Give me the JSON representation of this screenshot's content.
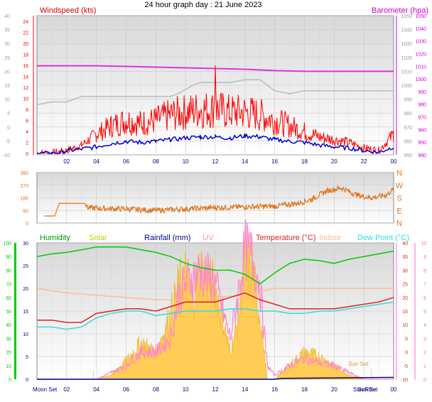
{
  "title": "24 hour graph day : 21 June 2023",
  "colors": {
    "windspeed": "#ff0000",
    "gust_label": "#cc0000",
    "avg_wind": "#0000cc",
    "barometer": "#dd33dd",
    "baro_label": "#cc00cc",
    "humidity": "#00cc00",
    "humidity_label": "#009900",
    "solar": "#ffcc55",
    "solar_label": "#cccc00",
    "rainfall": "#000088",
    "uv": "#ff88cc",
    "temperature": "#dd2222",
    "indoor": "#ffbb99",
    "dewpoint": "#33dddd",
    "direction": "#dd7722",
    "axis_pink": "#ff66cc",
    "axis_green": "#00cc00",
    "time_blue": "#000088"
  },
  "chart_data": [
    {
      "type": "line",
      "name": "wind-and-pressure",
      "left_axis_label": "Windspeed (kts)",
      "right_axis_label": "Barometer (hpa)",
      "left_axis_ticks": [
        "40",
        "35",
        "30",
        "25",
        "20",
        "15",
        "10",
        "5",
        "0",
        "-5",
        "-10"
      ],
      "left_axis_range": [
        -10,
        40
      ],
      "left_inner_ticks": [
        "24",
        "22",
        "20",
        "18",
        "16",
        "14",
        "12",
        "10",
        "8",
        "6",
        "4",
        "2",
        "0"
      ],
      "left_inner_range": [
        0,
        24
      ],
      "right_axis_ticks": [
        "1050",
        "1040",
        "1030",
        "1020",
        "1010",
        "1000",
        "990",
        "980",
        "970",
        "960",
        "950"
      ],
      "right_axis_range": [
        950,
        1050
      ],
      "right_inner_ticks": [
        "1050",
        "1040",
        "1030",
        "1020",
        "1010",
        "1000",
        "990",
        "980",
        "970",
        "960",
        "950",
        "980"
      ],
      "x_ticks": [
        "02",
        "04",
        "06",
        "08",
        "10",
        "12",
        "14",
        "16",
        "18",
        "20",
        "22",
        "00"
      ],
      "x_range_hours": [
        0,
        24
      ],
      "series": [
        {
          "name": "Barometer (hpa)",
          "x": [
            0,
            2,
            4,
            6,
            8,
            10,
            12,
            14,
            16,
            18,
            20,
            22,
            24
          ],
          "values": [
            1014,
            1014,
            1014,
            1013.5,
            1013,
            1012.5,
            1012,
            1011.5,
            1010.5,
            1010,
            1010,
            1010,
            1010
          ]
        },
        {
          "x": [
            0,
            1,
            2,
            3,
            4,
            5,
            6,
            7,
            8,
            9,
            9.5,
            10.5,
            11,
            12,
            13,
            14,
            15,
            15.5,
            16,
            17,
            18,
            19,
            20,
            21,
            22,
            23,
            24
          ],
          "values": [
            8,
            9,
            9,
            11,
            11,
            11,
            11,
            11,
            11,
            11,
            12,
            15,
            16,
            16,
            16,
            17,
            17,
            15,
            13,
            12,
            13,
            13,
            13,
            13,
            13,
            13,
            13
          ]
        },
        {
          "x": [
            0,
            1,
            1.5,
            2,
            3,
            4,
            5,
            6,
            7,
            8,
            9,
            10,
            11,
            12,
            13,
            14,
            15,
            16,
            17,
            18,
            19,
            20,
            21,
            22,
            23,
            24
          ],
          "values": [
            0,
            0,
            0,
            0.5,
            0.8,
            1.2,
            1.8,
            2.2,
            2.0,
            2.2,
            2.5,
            2.8,
            3.0,
            3.0,
            2.8,
            3.2,
            3.0,
            2.5,
            2.2,
            2.0,
            1.5,
            1.2,
            1.0,
            0.5,
            0.2,
            1.2
          ]
        },
        {
          "x": [
            0,
            1,
            2,
            3,
            4,
            5,
            6,
            7,
            8,
            9,
            10,
            11,
            11.9,
            12,
            12.1,
            13,
            14,
            15,
            16,
            17,
            18,
            19,
            20,
            21,
            22,
            23,
            24
          ],
          "values": [
            0,
            0,
            0.5,
            1.5,
            3.5,
            5,
            6,
            5.5,
            6,
            7,
            7.5,
            8,
            8,
            16,
            8,
            7.5,
            7.5,
            7,
            6,
            5,
            4,
            3,
            2.5,
            2,
            1,
            0.5,
            3.5
          ]
        }
      ]
    },
    {
      "type": "line",
      "name": "wind-direction",
      "left_axis_ticks": [
        "360",
        "270",
        "180",
        "90",
        "0"
      ],
      "left_axis_range": [
        0,
        360
      ],
      "right_axis_ticks": [
        "N",
        "W",
        "S",
        "E",
        "N"
      ],
      "x_range_hours": [
        0,
        24
      ],
      "series": [
        {
          "x": [
            0.5,
            1.2,
            1.5,
            3.2,
            3.4,
            4,
            6,
            8,
            10,
            12,
            14,
            16,
            17.5,
            18.5,
            19.5,
            20.5,
            21.5,
            22.5,
            23.5,
            24
          ],
          "values": [
            50,
            50,
            140,
            140,
            110,
            105,
            100,
            90,
            100,
            110,
            115,
            120,
            140,
            170,
            230,
            250,
            200,
            180,
            200,
            240
          ]
        }
      ]
    },
    {
      "type": "line",
      "name": "temperature-humidity-solar",
      "legend": [
        "Humidity",
        "Solar",
        "Rainfall (mm)",
        "UV",
        "Temperature (°C)",
        "Indoor",
        "Dew Point (°C)"
      ],
      "far_left_ticks": [
        "100",
        "90",
        "80",
        "70",
        "60",
        "50",
        "40",
        "30",
        "20",
        "10",
        "0"
      ],
      "far_left_range": [
        0,
        100
      ],
      "left_ticks": [
        "30",
        "25",
        "20",
        "15",
        "10",
        "5",
        "0"
      ],
      "left_range": [
        0,
        30
      ],
      "right_ticks": [
        "40",
        "35",
        "30",
        "25",
        "20",
        "15",
        "10",
        "5",
        "0",
        "-5",
        "-10"
      ],
      "right_range": [
        -10,
        40
      ],
      "far_right_ticks": [
        "10",
        "9",
        "8",
        "7",
        "6",
        "5",
        "4",
        "3",
        "2",
        "1",
        "0"
      ],
      "far_right_range": [
        0,
        10
      ],
      "x_ticks": [
        "02",
        "04",
        "06",
        "08",
        "10",
        "12",
        "14",
        "16",
        "18",
        "20",
        "22",
        "00"
      ],
      "x_range_hours": [
        0,
        24
      ],
      "annotations": [
        "Moon Set",
        "Sun Rise",
        "Sun Set",
        "Sun Set"
      ],
      "series": [
        {
          "name": "Humidity",
          "x": [
            0,
            1,
            2,
            3,
            4,
            5,
            6,
            7,
            8,
            9,
            10,
            11,
            12,
            13,
            14,
            15,
            16,
            17,
            18,
            19,
            20,
            21,
            22,
            23,
            24
          ],
          "values": [
            90,
            92,
            93,
            95,
            97,
            97,
            97,
            95,
            93,
            90,
            85,
            82,
            80,
            80,
            77,
            70,
            78,
            85,
            88,
            87,
            85,
            88,
            90,
            92,
            94
          ]
        },
        {
          "name": "Indoor",
          "x": [
            0,
            2,
            4,
            6,
            8,
            10,
            12,
            14,
            16,
            18,
            20,
            22,
            24
          ],
          "values": [
            20,
            19,
            18.5,
            18,
            17.5,
            17.5,
            18,
            18.5,
            20,
            20,
            20,
            20,
            20
          ]
        },
        {
          "name": "Temperature (°C)",
          "x": [
            0,
            1,
            2,
            3,
            4,
            5,
            6,
            7,
            8,
            9,
            10,
            11,
            12,
            13,
            14,
            15,
            16,
            17,
            18,
            19,
            20,
            21,
            22,
            23,
            24
          ],
          "values": [
            13,
            13,
            12.5,
            12.5,
            14.5,
            15,
            15.5,
            15.5,
            15,
            16,
            17,
            17,
            17,
            18,
            19,
            17.5,
            16.5,
            15.5,
            15.5,
            15.5,
            15.5,
            16,
            16.5,
            17,
            18
          ]
        },
        {
          "name": "Dew Point (°C)",
          "x": [
            0,
            1,
            2,
            3,
            4,
            5,
            6,
            7,
            8,
            9,
            10,
            11,
            12,
            13,
            14,
            15,
            16,
            17,
            18,
            19,
            20,
            21,
            22,
            23,
            24
          ],
          "values": [
            11.5,
            11.5,
            11,
            11.5,
            13.5,
            14.5,
            15,
            15,
            14,
            14.5,
            15,
            15,
            15,
            15.5,
            15.5,
            15,
            15,
            14.5,
            14.5,
            15,
            15,
            15.5,
            16,
            16.5,
            17
          ]
        },
        {
          "name": "Solar",
          "x": [
            0,
            4,
            5,
            6,
            7,
            8,
            9,
            9.5,
            10,
            10.5,
            11,
            12,
            13,
            13.5,
            14,
            14.5,
            15,
            15.5,
            16,
            17,
            18,
            19,
            20,
            21,
            22,
            24
          ],
          "values": [
            0,
            0,
            1,
            4,
            8,
            6,
            14,
            20,
            23,
            18,
            24,
            20,
            6,
            12,
            26,
            23,
            14,
            0,
            0,
            3,
            6,
            5,
            3,
            1,
            0,
            0
          ]
        },
        {
          "name": "UV",
          "x": [
            0,
            4,
            5,
            6,
            7,
            8,
            9,
            9.5,
            10,
            11,
            12,
            13,
            13.5,
            14,
            14.5,
            15,
            15.5,
            16,
            17,
            18,
            19,
            20,
            21,
            22,
            24
          ],
          "values": [
            0,
            0,
            0.5,
            1,
            2,
            2,
            3,
            6,
            7,
            8,
            7,
            3,
            6,
            9.5,
            9,
            7,
            1,
            0.3,
            1,
            1.5,
            1.2,
            1,
            0.5,
            0,
            0
          ]
        },
        {
          "name": "Rainfall (mm)",
          "x": [
            0,
            16,
            16.5,
            24
          ],
          "values": [
            0,
            0,
            0.2,
            0.4
          ]
        }
      ]
    }
  ]
}
